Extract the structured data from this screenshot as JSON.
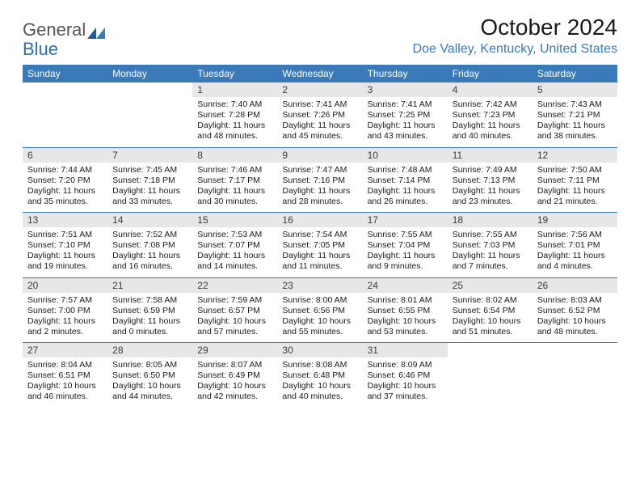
{
  "logo": {
    "text1": "General",
    "text2": "Blue"
  },
  "title": {
    "month": "October 2024",
    "location": "Doe Valley, Kentucky, United States"
  },
  "header_color": "#3a7ab8",
  "day_headers": [
    "Sunday",
    "Monday",
    "Tuesday",
    "Wednesday",
    "Thursday",
    "Friday",
    "Saturday"
  ],
  "weeks": [
    [
      null,
      null,
      {
        "n": "1",
        "sr": "Sunrise: 7:40 AM",
        "ss": "Sunset: 7:28 PM",
        "d1": "Daylight: 11 hours",
        "d2": "and 48 minutes."
      },
      {
        "n": "2",
        "sr": "Sunrise: 7:41 AM",
        "ss": "Sunset: 7:26 PM",
        "d1": "Daylight: 11 hours",
        "d2": "and 45 minutes."
      },
      {
        "n": "3",
        "sr": "Sunrise: 7:41 AM",
        "ss": "Sunset: 7:25 PM",
        "d1": "Daylight: 11 hours",
        "d2": "and 43 minutes."
      },
      {
        "n": "4",
        "sr": "Sunrise: 7:42 AM",
        "ss": "Sunset: 7:23 PM",
        "d1": "Daylight: 11 hours",
        "d2": "and 40 minutes."
      },
      {
        "n": "5",
        "sr": "Sunrise: 7:43 AM",
        "ss": "Sunset: 7:21 PM",
        "d1": "Daylight: 11 hours",
        "d2": "and 38 minutes."
      }
    ],
    [
      {
        "n": "6",
        "sr": "Sunrise: 7:44 AM",
        "ss": "Sunset: 7:20 PM",
        "d1": "Daylight: 11 hours",
        "d2": "and 35 minutes."
      },
      {
        "n": "7",
        "sr": "Sunrise: 7:45 AM",
        "ss": "Sunset: 7:18 PM",
        "d1": "Daylight: 11 hours",
        "d2": "and 33 minutes."
      },
      {
        "n": "8",
        "sr": "Sunrise: 7:46 AM",
        "ss": "Sunset: 7:17 PM",
        "d1": "Daylight: 11 hours",
        "d2": "and 30 minutes."
      },
      {
        "n": "9",
        "sr": "Sunrise: 7:47 AM",
        "ss": "Sunset: 7:16 PM",
        "d1": "Daylight: 11 hours",
        "d2": "and 28 minutes."
      },
      {
        "n": "10",
        "sr": "Sunrise: 7:48 AM",
        "ss": "Sunset: 7:14 PM",
        "d1": "Daylight: 11 hours",
        "d2": "and 26 minutes."
      },
      {
        "n": "11",
        "sr": "Sunrise: 7:49 AM",
        "ss": "Sunset: 7:13 PM",
        "d1": "Daylight: 11 hours",
        "d2": "and 23 minutes."
      },
      {
        "n": "12",
        "sr": "Sunrise: 7:50 AM",
        "ss": "Sunset: 7:11 PM",
        "d1": "Daylight: 11 hours",
        "d2": "and 21 minutes."
      }
    ],
    [
      {
        "n": "13",
        "sr": "Sunrise: 7:51 AM",
        "ss": "Sunset: 7:10 PM",
        "d1": "Daylight: 11 hours",
        "d2": "and 19 minutes."
      },
      {
        "n": "14",
        "sr": "Sunrise: 7:52 AM",
        "ss": "Sunset: 7:08 PM",
        "d1": "Daylight: 11 hours",
        "d2": "and 16 minutes."
      },
      {
        "n": "15",
        "sr": "Sunrise: 7:53 AM",
        "ss": "Sunset: 7:07 PM",
        "d1": "Daylight: 11 hours",
        "d2": "and 14 minutes."
      },
      {
        "n": "16",
        "sr": "Sunrise: 7:54 AM",
        "ss": "Sunset: 7:05 PM",
        "d1": "Daylight: 11 hours",
        "d2": "and 11 minutes."
      },
      {
        "n": "17",
        "sr": "Sunrise: 7:55 AM",
        "ss": "Sunset: 7:04 PM",
        "d1": "Daylight: 11 hours",
        "d2": "and 9 minutes."
      },
      {
        "n": "18",
        "sr": "Sunrise: 7:55 AM",
        "ss": "Sunset: 7:03 PM",
        "d1": "Daylight: 11 hours",
        "d2": "and 7 minutes."
      },
      {
        "n": "19",
        "sr": "Sunrise: 7:56 AM",
        "ss": "Sunset: 7:01 PM",
        "d1": "Daylight: 11 hours",
        "d2": "and 4 minutes."
      }
    ],
    [
      {
        "n": "20",
        "sr": "Sunrise: 7:57 AM",
        "ss": "Sunset: 7:00 PM",
        "d1": "Daylight: 11 hours",
        "d2": "and 2 minutes."
      },
      {
        "n": "21",
        "sr": "Sunrise: 7:58 AM",
        "ss": "Sunset: 6:59 PM",
        "d1": "Daylight: 11 hours",
        "d2": "and 0 minutes."
      },
      {
        "n": "22",
        "sr": "Sunrise: 7:59 AM",
        "ss": "Sunset: 6:57 PM",
        "d1": "Daylight: 10 hours",
        "d2": "and 57 minutes."
      },
      {
        "n": "23",
        "sr": "Sunrise: 8:00 AM",
        "ss": "Sunset: 6:56 PM",
        "d1": "Daylight: 10 hours",
        "d2": "and 55 minutes."
      },
      {
        "n": "24",
        "sr": "Sunrise: 8:01 AM",
        "ss": "Sunset: 6:55 PM",
        "d1": "Daylight: 10 hours",
        "d2": "and 53 minutes."
      },
      {
        "n": "25",
        "sr": "Sunrise: 8:02 AM",
        "ss": "Sunset: 6:54 PM",
        "d1": "Daylight: 10 hours",
        "d2": "and 51 minutes."
      },
      {
        "n": "26",
        "sr": "Sunrise: 8:03 AM",
        "ss": "Sunset: 6:52 PM",
        "d1": "Daylight: 10 hours",
        "d2": "and 48 minutes."
      }
    ],
    [
      {
        "n": "27",
        "sr": "Sunrise: 8:04 AM",
        "ss": "Sunset: 6:51 PM",
        "d1": "Daylight: 10 hours",
        "d2": "and 46 minutes."
      },
      {
        "n": "28",
        "sr": "Sunrise: 8:05 AM",
        "ss": "Sunset: 6:50 PM",
        "d1": "Daylight: 10 hours",
        "d2": "and 44 minutes."
      },
      {
        "n": "29",
        "sr": "Sunrise: 8:07 AM",
        "ss": "Sunset: 6:49 PM",
        "d1": "Daylight: 10 hours",
        "d2": "and 42 minutes."
      },
      {
        "n": "30",
        "sr": "Sunrise: 8:08 AM",
        "ss": "Sunset: 6:48 PM",
        "d1": "Daylight: 10 hours",
        "d2": "and 40 minutes."
      },
      {
        "n": "31",
        "sr": "Sunrise: 8:09 AM",
        "ss": "Sunset: 6:46 PM",
        "d1": "Daylight: 10 hours",
        "d2": "and 37 minutes."
      },
      null,
      null
    ]
  ]
}
